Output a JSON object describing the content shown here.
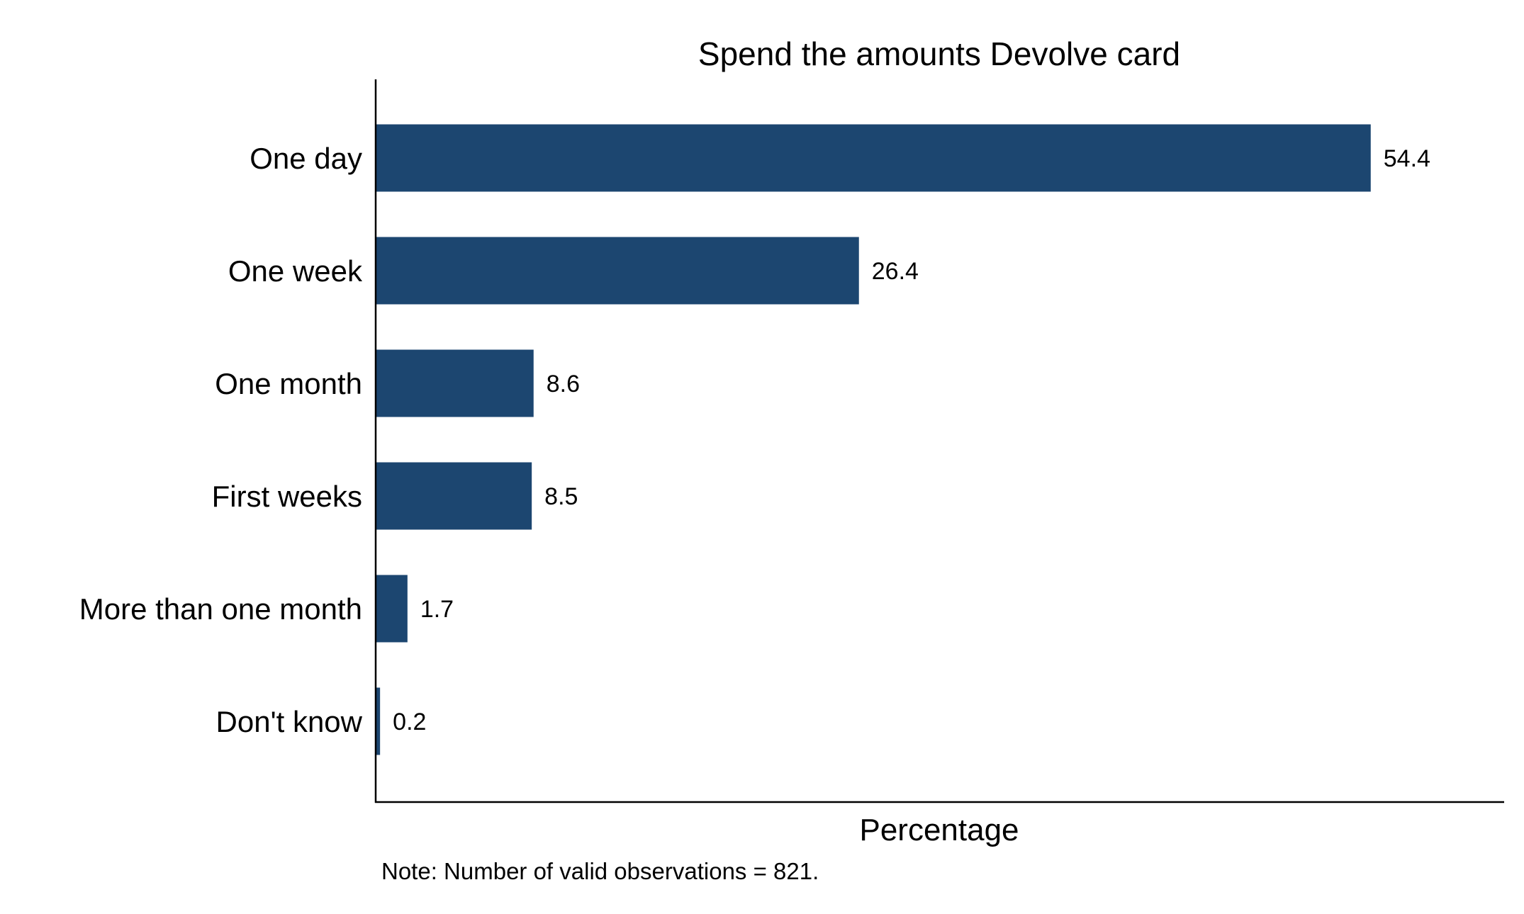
{
  "chart_data": {
    "type": "bar",
    "orientation": "horizontal",
    "title": "Spend the amounts Devolve card",
    "xlabel": "Percentage",
    "ylabel": "",
    "note": "Note: Number of valid observations = 821.",
    "categories": [
      "One day",
      "One week",
      "One month",
      "First weeks",
      "More than one month",
      "Don't know"
    ],
    "values": [
      54.4,
      26.4,
      8.6,
      8.5,
      1.7,
      0.2
    ],
    "value_labels": [
      "54.4",
      "26.4",
      "8.6",
      "8.5",
      "1.7",
      "0.2"
    ],
    "xlim": [
      0,
      61.7
    ],
    "grid": false,
    "legend": "none",
    "bar_color": "#1c4670"
  }
}
